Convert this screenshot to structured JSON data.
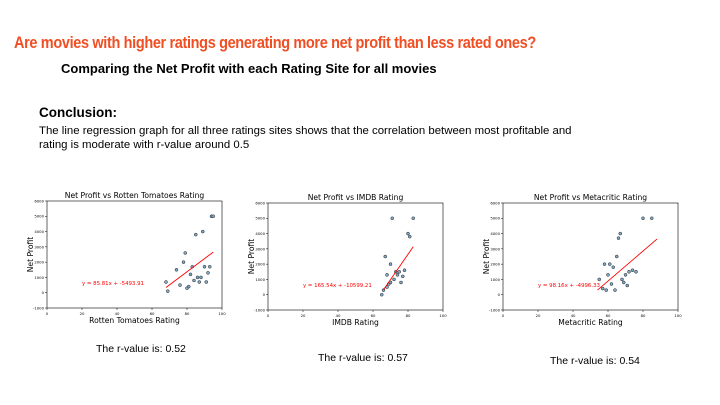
{
  "header": {
    "headline": "Are movies with higher ratings generating more net profit than less rated ones?",
    "subtitle": "Comparing the Net Profit with each Rating Site for all movies"
  },
  "conclusion": {
    "heading": "Conclusion:",
    "text": "The line regression graph for all three ratings sites shows that the correlation between most profitable and rating is moderate with r-value around 0.5"
  },
  "colors": {
    "headline": "#f04e23",
    "point_fill": "#7fa9c8",
    "point_edge": "#1f1f1f",
    "regression_line": "#ff0000",
    "equation_text": "#ff0000"
  },
  "chart_data": [
    {
      "type": "scatter",
      "title": "Net Profit vs Rotten Tomatoes Rating",
      "xlabel": "Rotten Tomatoes Rating",
      "ylabel": "Net Profit",
      "xlim": [
        0,
        100
      ],
      "ylim": [
        -1000,
        6000
      ],
      "xticks": [
        0,
        20,
        40,
        60,
        80,
        100
      ],
      "yticks": [
        -1000,
        0,
        1000,
        2000,
        3000,
        4000,
        5000,
        6000
      ],
      "x": [
        68,
        69,
        74,
        76,
        78,
        79,
        80,
        81,
        82,
        83,
        84,
        85,
        86,
        87,
        88,
        89,
        90,
        91,
        92,
        93,
        94,
        95
      ],
      "y": [
        700,
        100,
        1500,
        500,
        2000,
        2600,
        300,
        400,
        1200,
        1700,
        800,
        3800,
        1000,
        700,
        1000,
        4000,
        1700,
        700,
        1300,
        1700,
        5000,
        5000
      ],
      "regression": {
        "slope": 85.81,
        "intercept": -5493.91,
        "x_range": [
          68,
          95
        ]
      },
      "equation": "y = 85.81x + -5493.91",
      "r_value_text": "The r-value is: 0.52",
      "grid": false
    },
    {
      "type": "scatter",
      "title": "Net Profit vs IMDB Rating",
      "xlabel": "IMDB Rating",
      "ylabel": "Net Profit",
      "xlim": [
        0,
        100
      ],
      "ylim": [
        -1000,
        6000
      ],
      "xticks": [
        0,
        20,
        40,
        60,
        80,
        100
      ],
      "yticks": [
        -1000,
        0,
        1000,
        2000,
        3000,
        4000,
        5000,
        6000
      ],
      "x": [
        65,
        66,
        67,
        68,
        68,
        69,
        70,
        70,
        71,
        72,
        73,
        74,
        75,
        76,
        77,
        78,
        80,
        81,
        83
      ],
      "y": [
        0,
        300,
        2500,
        1300,
        500,
        700,
        2000,
        800,
        5000,
        1000,
        1500,
        1300,
        1500,
        800,
        1200,
        1600,
        4000,
        3800,
        5000
      ],
      "regression": {
        "slope": 165.54,
        "intercept": -10599.21,
        "x_range": [
          66,
          83
        ]
      },
      "equation": "y = 165.54x + -10599.21",
      "r_value_text": "The r-value is: 0.57",
      "grid": false
    },
    {
      "type": "scatter",
      "title": "Net Profit vs Metacritic Rating",
      "xlabel": "Metacritic Rating",
      "ylabel": "Net Profit",
      "xlim": [
        0,
        100
      ],
      "ylim": [
        -1000,
        6000
      ],
      "xticks": [
        0,
        20,
        40,
        60,
        80,
        100
      ],
      "yticks": [
        -1000,
        0,
        1000,
        2000,
        3000,
        4000,
        5000,
        6000
      ],
      "x": [
        55,
        57,
        58,
        59,
        60,
        61,
        62,
        63,
        64,
        65,
        66,
        67,
        68,
        69,
        70,
        71,
        72,
        74,
        76,
        80,
        85
      ],
      "y": [
        1000,
        400,
        2000,
        300,
        1300,
        2000,
        700,
        1800,
        300,
        2500,
        3700,
        4000,
        1000,
        800,
        1300,
        600,
        1500,
        1600,
        1500,
        5000,
        5000
      ],
      "regression": {
        "slope": 98.16,
        "intercept": -4996.33,
        "x_range": [
          54,
          88
        ]
      },
      "equation": "y = 98.16x + -4996.33",
      "r_value_text": "The r-value is: 0.54",
      "grid": false
    }
  ]
}
